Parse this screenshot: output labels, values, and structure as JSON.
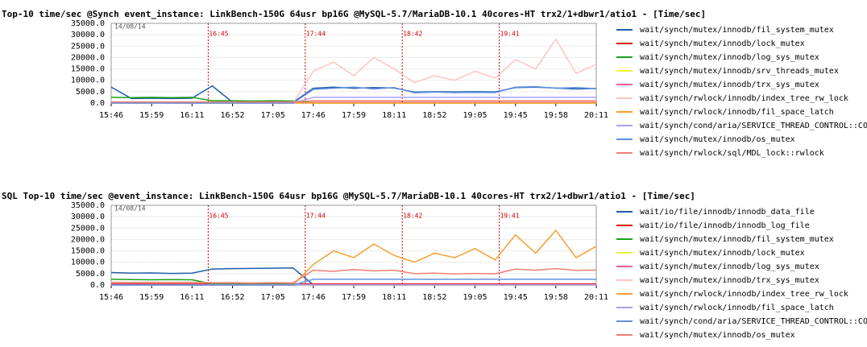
{
  "chart_data": [
    {
      "type": "line",
      "title": "Top-10 time/sec @Synch event_instance: LinkBench-150G 64usr bp16G @MySQL-5.7/MariaDB-10.1 40cores-HT trx2/1+dbwr1/atio1 - [Time/sec]",
      "date": "14/08/14",
      "x": [
        0,
        0.5,
        1,
        1.5,
        2,
        2.5,
        3,
        3.5,
        4,
        4.5,
        5,
        5.5,
        6,
        6.5,
        7,
        7.5,
        8,
        8.5,
        9,
        9.5,
        10,
        10.5,
        11,
        11.5,
        12
      ],
      "xlim": [
        0,
        12
      ],
      "xticks": [
        {
          "value": 0,
          "label": "15:46"
        },
        {
          "value": 1,
          "label": "15:59"
        },
        {
          "value": 2,
          "label": "16:11"
        },
        {
          "value": 3,
          "label": "16:52"
        },
        {
          "value": 4,
          "label": "17:05"
        },
        {
          "value": 5,
          "label": "17:46"
        },
        {
          "value": 6,
          "label": "17:59"
        },
        {
          "value": 7,
          "label": "18:11"
        },
        {
          "value": 8,
          "label": "18:52"
        },
        {
          "value": 9,
          "label": "19:05"
        },
        {
          "value": 10,
          "label": "19:45"
        },
        {
          "value": 11,
          "label": "19:58"
        },
        {
          "value": 12,
          "label": "20:11"
        }
      ],
      "markers": [
        {
          "value": 2.4,
          "label": "16:45"
        },
        {
          "value": 4.8,
          "label": "17:44"
        },
        {
          "value": 7.2,
          "label": "18:42"
        },
        {
          "value": 9.6,
          "label": "19:41"
        }
      ],
      "ylim": [
        0,
        35000
      ],
      "yticks": [
        {
          "value": 0,
          "label": "0.0"
        },
        {
          "value": 5000,
          "label": "5000.0"
        },
        {
          "value": 10000,
          "label": "10000.0"
        },
        {
          "value": 15000,
          "label": "15000.0"
        },
        {
          "value": 20000,
          "label": "20000.0"
        },
        {
          "value": 25000,
          "label": "25000.0"
        },
        {
          "value": 30000,
          "label": "30000.0"
        },
        {
          "value": 35000,
          "label": "35000.0"
        }
      ],
      "grid": true,
      "series": [
        {
          "name": "wait/synch/mutex/innodb/fil_system_mutex",
          "color": "#1f5fa8",
          "values": [
            7000,
            2000,
            2100,
            2000,
            2100,
            7500,
            400,
            400,
            400,
            300,
            6500,
            7000,
            6500,
            6800,
            6600,
            4800,
            5000,
            4900,
            5000,
            4900,
            6800,
            7000,
            6600,
            6200,
            6400
          ]
        },
        {
          "name": "wait/synch/mutex/innodb/lock_mutex",
          "color": "#e00000",
          "values": [
            200,
            200,
            200,
            200,
            200,
            200,
            200,
            200,
            200,
            200,
            200,
            200,
            200,
            200,
            200,
            200,
            200,
            200,
            200,
            200,
            200,
            200,
            200,
            200,
            200
          ]
        },
        {
          "name": "wait/synch/mutex/innodb/log_sys_mutex",
          "color": "#1aa01a",
          "values": [
            2500,
            2400,
            2500,
            2400,
            2500,
            1000,
            1000,
            900,
            1000,
            900,
            0,
            0,
            0,
            0,
            0,
            0,
            0,
            0,
            0,
            0,
            0,
            0,
            0,
            0,
            0
          ]
        },
        {
          "name": "wait/synch/mutex/innodb/srv_threads_mutex",
          "color": "#f0f040",
          "values": [
            0,
            0,
            0,
            0,
            0,
            0,
            0,
            0,
            0,
            0,
            0,
            0,
            0,
            0,
            0,
            0,
            0,
            0,
            0,
            0,
            0,
            0,
            0,
            0,
            0
          ]
        },
        {
          "name": "wait/synch/mutex/innodb/trx_sys_mutex",
          "color": "#f06090",
          "values": [
            100,
            100,
            100,
            100,
            100,
            100,
            100,
            100,
            100,
            100,
            100,
            100,
            100,
            100,
            100,
            100,
            100,
            100,
            100,
            100,
            100,
            100,
            100,
            100,
            100
          ]
        },
        {
          "name": "wait/synch/rwlock/innodb/index_tree_rw_lock",
          "color": "#ffc4c4",
          "values": [
            0,
            0,
            0,
            0,
            0,
            0,
            0,
            0,
            0,
            0,
            14000,
            18000,
            12000,
            20000,
            15000,
            9000,
            12000,
            10000,
            14000,
            11000,
            19000,
            15000,
            28000,
            13000,
            17000
          ]
        },
        {
          "name": "wait/synch/rwlock/innodb/fil_space_latch",
          "color": "#f5a030",
          "values": [
            0,
            0,
            0,
            0,
            0,
            0,
            0,
            0,
            0,
            0,
            0,
            0,
            0,
            0,
            0,
            0,
            0,
            0,
            0,
            0,
            0,
            0,
            0,
            0,
            0
          ]
        },
        {
          "name": "wait/synch/cond/aria/SERVICE_THREAD_CONTROL::CO",
          "color": "#a8a0f0",
          "values": [
            0,
            0,
            0,
            0,
            0,
            0,
            0,
            0,
            0,
            0,
            2500,
            2500,
            2500,
            2500,
            2500,
            2500,
            2500,
            2500,
            2500,
            2500,
            2500,
            2500,
            2500,
            2500,
            2500
          ]
        },
        {
          "name": "wait/synch/mutex/innodb/os_mutex",
          "color": "#6090e0",
          "values": [
            0,
            0,
            0,
            0,
            0,
            0,
            0,
            0,
            0,
            0,
            6000,
            6500,
            7000,
            6200,
            6800,
            4500,
            4800,
            4600,
            4700,
            4600,
            7000,
            7200,
            6500,
            6800,
            6300
          ]
        },
        {
          "name": "wait/synch/rwlock/sql/MDL_lock::rwlock",
          "color": "#f08070",
          "values": [
            500,
            500,
            500,
            500,
            500,
            500,
            500,
            500,
            500,
            500,
            1000,
            1000,
            1000,
            1000,
            1000,
            1000,
            1000,
            1000,
            1000,
            1000,
            1000,
            1000,
            1000,
            1000,
            1000
          ]
        }
      ]
    },
    {
      "type": "line",
      "title": "SQL Top-10 time/sec @event_instance: LinkBench-150G 64usr bp16G @MySQL-5.7/MariaDB-10.1 40cores-HT trx2/1+dbwr1/atio1 - [Time/sec]",
      "date": "14/08/14",
      "x": [
        0,
        0.5,
        1,
        1.5,
        2,
        2.5,
        3,
        3.5,
        4,
        4.5,
        5,
        5.5,
        6,
        6.5,
        7,
        7.5,
        8,
        8.5,
        9,
        9.5,
        10,
        10.5,
        11,
        11.5,
        12
      ],
      "xlim": [
        0,
        12
      ],
      "xticks": [
        {
          "value": 0,
          "label": "15:46"
        },
        {
          "value": 1,
          "label": "15:59"
        },
        {
          "value": 2,
          "label": "16:11"
        },
        {
          "value": 3,
          "label": "16:52"
        },
        {
          "value": 4,
          "label": "17:05"
        },
        {
          "value": 5,
          "label": "17:46"
        },
        {
          "value": 6,
          "label": "17:59"
        },
        {
          "value": 7,
          "label": "18:11"
        },
        {
          "value": 8,
          "label": "18:52"
        },
        {
          "value": 9,
          "label": "19:05"
        },
        {
          "value": 10,
          "label": "19:45"
        },
        {
          "value": 11,
          "label": "19:58"
        },
        {
          "value": 12,
          "label": "20:11"
        }
      ],
      "markers": [
        {
          "value": 2.4,
          "label": "16:45"
        },
        {
          "value": 4.8,
          "label": "17:44"
        },
        {
          "value": 7.2,
          "label": "18:42"
        },
        {
          "value": 9.6,
          "label": "19:41"
        }
      ],
      "ylim": [
        0,
        35000
      ],
      "yticks": [
        {
          "value": 0,
          "label": "0.0"
        },
        {
          "value": 5000,
          "label": "5000.0"
        },
        {
          "value": 10000,
          "label": "10000.0"
        },
        {
          "value": 15000,
          "label": "15000.0"
        },
        {
          "value": 20000,
          "label": "20000.0"
        },
        {
          "value": 25000,
          "label": "25000.0"
        },
        {
          "value": 30000,
          "label": "30000.0"
        },
        {
          "value": 35000,
          "label": "35000.0"
        }
      ],
      "grid": true,
      "series": [
        {
          "name": "wait/io/file/innodb/innodb_data_file",
          "color": "#1f5fa8",
          "values": [
            5500,
            5200,
            5300,
            5100,
            5200,
            7000,
            7200,
            7300,
            7400,
            7500,
            0,
            0,
            0,
            0,
            0,
            0,
            0,
            0,
            0,
            0,
            0,
            0,
            0,
            0,
            0
          ]
        },
        {
          "name": "wait/io/file/innodb/innodb_log_file",
          "color": "#e00000",
          "values": [
            500,
            500,
            500,
            500,
            500,
            500,
            500,
            500,
            500,
            500,
            500,
            500,
            500,
            500,
            500,
            500,
            500,
            500,
            500,
            500,
            500,
            500,
            500,
            500,
            500
          ]
        },
        {
          "name": "wait/synch/mutex/innodb/fil_system_mutex",
          "color": "#1aa01a",
          "values": [
            2500,
            2400,
            2300,
            2400,
            2300,
            500,
            500,
            500,
            500,
            500,
            0,
            0,
            0,
            0,
            0,
            0,
            0,
            0,
            0,
            0,
            0,
            0,
            0,
            0,
            0
          ]
        },
        {
          "name": "wait/synch/mutex/innodb/lock_mutex",
          "color": "#f0f040",
          "values": [
            0,
            0,
            0,
            0,
            0,
            0,
            0,
            0,
            0,
            0,
            0,
            0,
            0,
            0,
            0,
            0,
            0,
            0,
            0,
            0,
            0,
            0,
            0,
            0,
            0
          ]
        },
        {
          "name": "wait/synch/mutex/innodb/log_sys_mutex",
          "color": "#f06090",
          "values": [
            200,
            200,
            200,
            200,
            200,
            200,
            200,
            200,
            200,
            200,
            200,
            200,
            200,
            200,
            200,
            200,
            200,
            200,
            200,
            200,
            200,
            200,
            200,
            200,
            200
          ]
        },
        {
          "name": "wait/synch/mutex/innodb/trx_sys_mutex",
          "color": "#ffc4c4",
          "values": [
            0,
            0,
            0,
            0,
            0,
            0,
            0,
            0,
            0,
            0,
            0,
            0,
            0,
            0,
            0,
            0,
            0,
            0,
            0,
            0,
            0,
            0,
            0,
            0,
            0
          ]
        },
        {
          "name": "wait/synch/rwlock/innodb/index_tree_rw_lock",
          "color": "#f5a030",
          "values": [
            0,
            0,
            0,
            0,
            0,
            0,
            0,
            0,
            0,
            0,
            9000,
            15000,
            12000,
            18000,
            13000,
            10000,
            14000,
            12000,
            16000,
            11000,
            22000,
            14000,
            24000,
            12000,
            17000
          ]
        },
        {
          "name": "wait/synch/rwlock/innodb/fil_space_latch",
          "color": "#a8a0f0",
          "values": [
            0,
            0,
            0,
            0,
            0,
            0,
            0,
            0,
            0,
            0,
            0,
            0,
            0,
            0,
            0,
            0,
            0,
            0,
            0,
            0,
            0,
            0,
            0,
            0,
            0
          ]
        },
        {
          "name": "wait/synch/cond/aria/SERVICE_THREAD_CONTROL::CO",
          "color": "#6090e0",
          "values": [
            0,
            0,
            0,
            0,
            0,
            0,
            0,
            0,
            0,
            0,
            2500,
            2500,
            2500,
            2500,
            2500,
            2500,
            2500,
            2500,
            2500,
            2500,
            2500,
            2500,
            2500,
            2500,
            2500
          ]
        },
        {
          "name": "wait/synch/mutex/innodb/os_mutex",
          "color": "#f08070",
          "values": [
            1200,
            1100,
            1200,
            1100,
            1200,
            1000,
            1000,
            900,
            1000,
            900,
            6500,
            6000,
            6800,
            6200,
            6500,
            5000,
            5200,
            4800,
            5100,
            4900,
            7000,
            6500,
            7200,
            6400,
            6600
          ]
        }
      ]
    }
  ]
}
